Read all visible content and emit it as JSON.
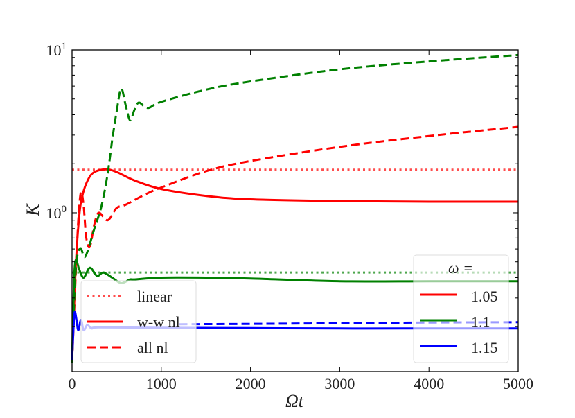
{
  "chart_data": {
    "type": "line",
    "title": "",
    "xlabel": "Ωt",
    "ylabel": "K",
    "xlim": [
      0,
      5000
    ],
    "ylim": [
      0.106,
      10
    ],
    "yscale": "log",
    "grid": false,
    "xticks": [
      0,
      1000,
      2000,
      3000,
      4000,
      5000
    ],
    "xtick_labels": [
      "0",
      "1000",
      "2000",
      "3000",
      "4000",
      "5000"
    ],
    "yticks": [
      {
        "value": 1,
        "base": "10",
        "exp": "0"
      },
      {
        "value": 10,
        "base": "10",
        "exp": "1"
      }
    ],
    "colors": {
      "1.05": "#ff0000",
      "1.1": "#008000",
      "1.15": "#0000ff"
    },
    "style_legend": {
      "placement": "lower-left",
      "entries": [
        {
          "label": "linear",
          "style": "dotted"
        },
        {
          "label": "w-w nl",
          "style": "solid"
        },
        {
          "label": "all nl",
          "style": "dashed"
        }
      ]
    },
    "omega_legend": {
      "placement": "lower-right",
      "title": "ω =",
      "entries": [
        {
          "label": "1.05",
          "color": "#ff0000"
        },
        {
          "label": "1.1",
          "color": "#008000"
        },
        {
          "label": "1.15",
          "color": "#0000ff"
        }
      ]
    },
    "series": [
      {
        "omega": "1.05",
        "style": "dotted",
        "color": "#ff4d4d",
        "x": [
          0,
          5000
        ],
        "y": [
          1.84,
          1.84
        ]
      },
      {
        "omega": "1.1",
        "style": "dotted",
        "color": "#4da64d",
        "x": [
          0,
          5000
        ],
        "y": [
          0.43,
          0.43
        ]
      },
      {
        "omega": "1.05",
        "style": "solid",
        "color": "#ff0000",
        "x": [
          0,
          40,
          80,
          120,
          180,
          250,
          380,
          500,
          700,
          1000,
          1500,
          2000,
          3000,
          4000,
          5000
        ],
        "y": [
          0.12,
          0.45,
          0.95,
          1.3,
          1.6,
          1.78,
          1.85,
          1.78,
          1.58,
          1.4,
          1.27,
          1.21,
          1.18,
          1.17,
          1.17
        ]
      },
      {
        "omega": "1.05",
        "style": "dashed",
        "color": "#ff0000",
        "x": [
          0,
          40,
          70,
          100,
          130,
          160,
          200,
          250,
          300,
          400,
          500,
          600,
          800,
          1000,
          1500,
          2000,
          3000,
          4000,
          5000
        ],
        "y": [
          0.12,
          0.4,
          0.9,
          1.34,
          1.1,
          0.7,
          0.62,
          0.85,
          1.0,
          0.9,
          1.07,
          1.12,
          1.28,
          1.43,
          1.8,
          2.08,
          2.54,
          2.96,
          3.37
        ]
      },
      {
        "omega": "1.1",
        "style": "solid",
        "color": "#008000",
        "x": [
          0,
          20,
          40,
          80,
          130,
          200,
          280,
          350,
          450,
          550,
          650,
          700,
          1000,
          1500,
          2000,
          3000,
          4000,
          5000
        ],
        "y": [
          0.12,
          0.35,
          0.51,
          0.45,
          0.4,
          0.46,
          0.41,
          0.43,
          0.4,
          0.37,
          0.39,
          0.39,
          0.4,
          0.4,
          0.395,
          0.38,
          0.38,
          0.38
        ]
      },
      {
        "omega": "1.1",
        "style": "dashed",
        "color": "#008000",
        "x": [
          0,
          30,
          60,
          100,
          150,
          250,
          330,
          400,
          450,
          500,
          550,
          600,
          650,
          700,
          750,
          850,
          1000,
          1500,
          2000,
          3000,
          4000,
          5000
        ],
        "y": [
          0.12,
          0.35,
          0.55,
          0.6,
          0.54,
          0.8,
          1.1,
          1.75,
          2.8,
          4.2,
          5.8,
          4.6,
          3.7,
          4.3,
          4.75,
          4.4,
          4.8,
          5.7,
          6.4,
          7.6,
          8.5,
          9.3
        ]
      },
      {
        "omega": "1.15",
        "style": "solid",
        "color": "#0000ff",
        "x": [
          0,
          15,
          30,
          50,
          70,
          100,
          130,
          170,
          220,
          300,
          1000,
          2000,
          3000,
          4000,
          5000
        ],
        "y": [
          0.124,
          0.19,
          0.246,
          0.22,
          0.19,
          0.22,
          0.19,
          0.205,
          0.195,
          0.198,
          0.197,
          0.196,
          0.195,
          0.195,
          0.195
        ]
      },
      {
        "omega": "1.15",
        "style": "dashed",
        "color": "#0000ff",
        "x": [
          1200,
          2000,
          3000,
          4000,
          5000
        ],
        "y": [
          0.207,
          0.208,
          0.21,
          0.212,
          0.213
        ]
      }
    ]
  }
}
